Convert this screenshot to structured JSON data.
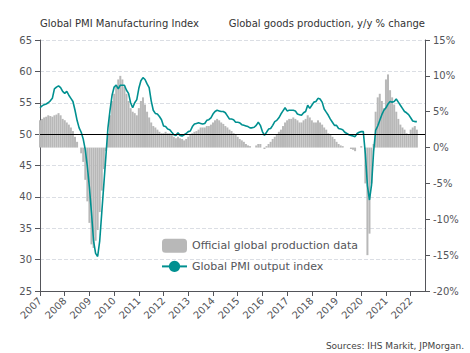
{
  "chart_data": {
    "type": "line",
    "ylabel": "Global PMI Manufacturing Index",
    "y2label": "Global goods production, y/y % change",
    "annotations": [
      "Sources: IHS Markit, JPMorgan."
    ],
    "xlim": [
      2007.0,
      2022.58
    ],
    "xticks": [
      2007,
      2008,
      2009,
      2010,
      2011,
      2012,
      2013,
      2014,
      2015,
      2016,
      2017,
      2018,
      2019,
      2020,
      2021,
      2022
    ],
    "ylim": [
      25,
      65
    ],
    "yticks": [
      25,
      30,
      35,
      40,
      45,
      50,
      55,
      60,
      65
    ],
    "y2lim": [
      -20,
      15
    ],
    "y2ticks": [
      {
        "value": -20,
        "label": "-20%"
      },
      {
        "value": -15,
        "label": "-15%"
      },
      {
        "value": -10,
        "label": "-10%"
      },
      {
        "value": -5,
        "label": "-5%"
      },
      {
        "value": 0,
        "label": "0%"
      },
      {
        "value": 5,
        "label": "5%"
      },
      {
        "value": 10,
        "label": "10%"
      },
      {
        "value": 15,
        "label": "15%"
      }
    ],
    "grid": true,
    "legend": "lower center",
    "hline": 50,
    "x": [
      2007.0,
      2007.083,
      2007.167,
      2007.25,
      2007.333,
      2007.417,
      2007.5,
      2007.583,
      2007.667,
      2007.75,
      2007.833,
      2007.917,
      2008.0,
      2008.083,
      2008.167,
      2008.25,
      2008.333,
      2008.417,
      2008.5,
      2008.583,
      2008.667,
      2008.75,
      2008.833,
      2008.917,
      2009.0,
      2009.083,
      2009.167,
      2009.25,
      2009.333,
      2009.417,
      2009.5,
      2009.583,
      2009.667,
      2009.75,
      2009.833,
      2009.917,
      2010.0,
      2010.083,
      2010.167,
      2010.25,
      2010.333,
      2010.417,
      2010.5,
      2010.583,
      2010.667,
      2010.75,
      2010.833,
      2010.917,
      2011.0,
      2011.083,
      2011.167,
      2011.25,
      2011.333,
      2011.417,
      2011.5,
      2011.583,
      2011.667,
      2011.75,
      2011.833,
      2011.917,
      2012.0,
      2012.083,
      2012.167,
      2012.25,
      2012.333,
      2012.417,
      2012.5,
      2012.583,
      2012.667,
      2012.75,
      2012.833,
      2012.917,
      2013.0,
      2013.083,
      2013.167,
      2013.25,
      2013.333,
      2013.417,
      2013.5,
      2013.583,
      2013.667,
      2013.75,
      2013.833,
      2013.917,
      2014.0,
      2014.083,
      2014.167,
      2014.25,
      2014.333,
      2014.417,
      2014.5,
      2014.583,
      2014.667,
      2014.75,
      2014.833,
      2014.917,
      2015.0,
      2015.083,
      2015.167,
      2015.25,
      2015.333,
      2015.417,
      2015.5,
      2015.583,
      2015.667,
      2015.75,
      2015.833,
      2015.917,
      2016.0,
      2016.083,
      2016.167,
      2016.25,
      2016.333,
      2016.417,
      2016.5,
      2016.583,
      2016.667,
      2016.75,
      2016.833,
      2016.917,
      2017.0,
      2017.083,
      2017.167,
      2017.25,
      2017.333,
      2017.417,
      2017.5,
      2017.583,
      2017.667,
      2017.75,
      2017.833,
      2017.917,
      2018.0,
      2018.083,
      2018.167,
      2018.25,
      2018.333,
      2018.417,
      2018.5,
      2018.583,
      2018.667,
      2018.75,
      2018.833,
      2018.917,
      2019.0,
      2019.083,
      2019.167,
      2019.25,
      2019.333,
      2019.417,
      2019.5,
      2019.583,
      2019.667,
      2019.75,
      2019.833,
      2019.917,
      2020.0,
      2020.083,
      2020.167,
      2020.25,
      2020.333,
      2020.417,
      2020.5,
      2020.583,
      2020.667,
      2020.75,
      2020.833,
      2020.917,
      2021.0,
      2021.083,
      2021.167,
      2021.25,
      2021.333,
      2021.417,
      2021.5,
      2021.583,
      2021.667,
      2021.75,
      2021.833,
      2021.917,
      2022.0,
      2022.083,
      2022.167,
      2022.25
    ],
    "series": [
      {
        "name": "Official global production data",
        "type": "bar",
        "axis": "y2",
        "color": "#b8b8b8",
        "values": [
          3.8,
          4.0,
          4.2,
          4.3,
          4.5,
          4.4,
          4.3,
          4.5,
          4.6,
          4.8,
          4.5,
          4.0,
          3.8,
          3.5,
          3.2,
          2.8,
          2.3,
          1.5,
          0.8,
          0.0,
          -0.8,
          -2.0,
          -4.5,
          -7.5,
          -10.5,
          -13.5,
          -14.0,
          -13.0,
          -11.5,
          -9.0,
          -6.0,
          -3.0,
          -0.5,
          2.0,
          4.5,
          6.5,
          7.5,
          8.5,
          9.5,
          10.0,
          9.5,
          8.5,
          7.5,
          6.5,
          5.5,
          5.0,
          4.8,
          4.5,
          5.5,
          6.5,
          7.0,
          6.0,
          5.0,
          4.2,
          3.5,
          3.0,
          2.8,
          2.5,
          2.2,
          2.0,
          2.0,
          2.2,
          2.0,
          2.0,
          1.8,
          1.5,
          1.3,
          1.5,
          1.3,
          1.2,
          1.0,
          1.2,
          1.5,
          1.8,
          2.0,
          2.2,
          2.3,
          2.5,
          2.8,
          2.8,
          2.8,
          3.0,
          3.0,
          3.2,
          3.5,
          3.8,
          4.0,
          3.8,
          3.5,
          3.3,
          3.0,
          2.8,
          2.5,
          2.3,
          2.0,
          1.8,
          1.5,
          1.2,
          1.0,
          0.8,
          0.5,
          0.3,
          0.2,
          0.0,
          0.0,
          0.3,
          0.5,
          0.5,
          0.0,
          -0.2,
          0.2,
          0.5,
          0.8,
          1.2,
          1.5,
          1.8,
          2.2,
          2.5,
          3.0,
          3.5,
          3.8,
          4.0,
          4.0,
          4.2,
          4.0,
          3.8,
          3.5,
          3.5,
          3.8,
          4.0,
          4.5,
          4.2,
          3.8,
          3.5,
          3.5,
          3.8,
          3.5,
          3.2,
          2.8,
          2.5,
          2.0,
          1.8,
          1.5,
          1.2,
          0.8,
          0.5,
          0.3,
          0.2,
          0.0,
          0.0,
          0.0,
          -0.2,
          -0.3,
          -0.5,
          0.0,
          0.0,
          0.2,
          0.0,
          -5.0,
          -15.0,
          -12.0,
          -5.0,
          0.5,
          5.0,
          7.0,
          7.5,
          6.5,
          5.5,
          9.5,
          10.2,
          8.0,
          7.0,
          6.0,
          5.0,
          4.0,
          3.2,
          2.8,
          2.5,
          2.0,
          1.8,
          2.5,
          2.8,
          3.0,
          2.5
        ]
      },
      {
        "name": "Global PMI output index",
        "type": "line",
        "color": "#009090",
        "values": [
          54.2,
          54.5,
          54.7,
          54.8,
          55.0,
          55.3,
          55.7,
          57.2,
          57.5,
          57.7,
          57.4,
          56.8,
          56.5,
          56.8,
          56.2,
          55.7,
          55.2,
          53.8,
          52.2,
          51.0,
          50.3,
          49.2,
          47.5,
          44.8,
          41.5,
          37.5,
          33.0,
          31.0,
          30.5,
          33.0,
          37.5,
          42.0,
          46.5,
          51.0,
          53.8,
          56.2,
          57.5,
          57.8,
          57.2,
          57.8,
          57.8,
          57.8,
          57.0,
          56.5,
          55.0,
          54.2,
          55.0,
          55.5,
          57.3,
          58.5,
          59.0,
          58.7,
          58.0,
          57.4,
          55.3,
          53.8,
          53.3,
          53.2,
          52.8,
          52.3,
          51.3,
          51.2,
          50.8,
          50.7,
          50.3,
          49.9,
          49.8,
          50.2,
          49.8,
          49.7,
          49.9,
          50.1,
          50.4,
          50.5,
          51.2,
          51.6,
          51.7,
          51.8,
          51.7,
          51.6,
          51.7,
          52.2,
          52.3,
          52.6,
          53.2,
          53.6,
          53.8,
          53.7,
          53.6,
          53.6,
          53.4,
          52.9,
          52.4,
          52.4,
          52.3,
          51.9,
          51.9,
          51.8,
          51.5,
          51.4,
          51.3,
          51.2,
          51.0,
          51.0,
          51.1,
          51.4,
          51.9,
          51.4,
          50.4,
          49.8,
          50.3,
          50.8,
          50.9,
          51.4,
          52.0,
          52.2,
          52.6,
          53.2,
          53.7,
          54.2,
          53.7,
          53.8,
          53.8,
          53.8,
          53.7,
          53.2,
          53.1,
          53.0,
          53.4,
          53.6,
          54.6,
          54.1,
          54.6,
          55.1,
          55.2,
          55.7,
          55.6,
          55.1,
          54.0,
          53.5,
          53.0,
          52.4,
          51.9,
          51.4,
          51.4,
          50.9,
          50.8,
          50.7,
          50.3,
          50.1,
          49.9,
          49.8,
          49.7,
          49.6,
          50.1,
          50.3,
          50.4,
          50.4,
          46.8,
          41.8,
          39.5,
          41.9,
          47.2,
          50.6,
          51.3,
          52.2,
          53.1,
          53.8,
          54.2,
          54.8,
          55.2,
          55.1,
          55.2,
          55.6,
          55.1,
          54.6,
          54.1,
          53.6,
          53.4,
          53.1,
          52.6,
          52.1,
          52.0,
          52.0
        ]
      }
    ]
  }
}
